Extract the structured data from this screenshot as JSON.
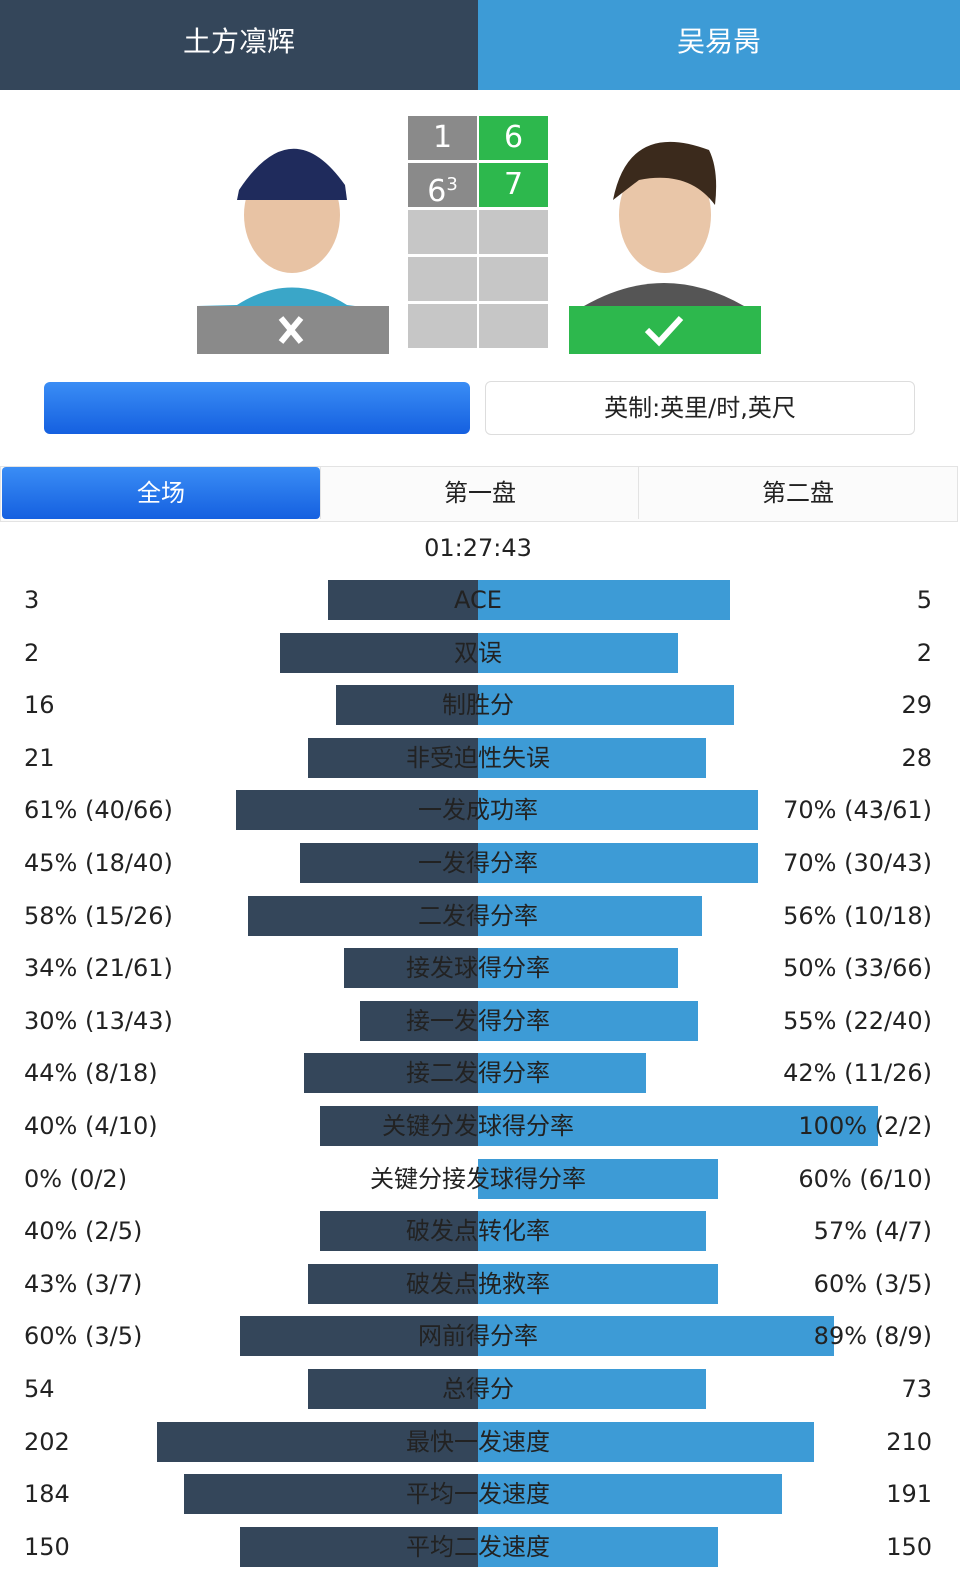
{
  "header": {
    "player_left": "土方凛辉",
    "player_right": "吴易昺"
  },
  "score": {
    "sets": [
      {
        "left": 1,
        "right": 6
      },
      {
        "left": 6,
        "left_tiebreak": 3,
        "right": 7
      }
    ]
  },
  "units_button": "英制:英里/时,英尺",
  "tabs": [
    "全场",
    "第一盘",
    "第二盘"
  ],
  "duration": "01:27:43",
  "stats": [
    {
      "label": "ACE",
      "left": "3",
      "right": "5"
    },
    {
      "label": "双误",
      "left": "2",
      "right": "2"
    },
    {
      "label": "制胜分",
      "left": "16",
      "right": "29"
    },
    {
      "label": "非受迫性失误",
      "left": "21",
      "right": "28"
    },
    {
      "label": "一发成功率",
      "left": "61% (40/66)",
      "right": "70% (43/61)"
    },
    {
      "label": "一发得分率",
      "left": "45% (18/40)",
      "right": "70% (30/43)"
    },
    {
      "label": "二发得分率",
      "left": "58% (15/26)",
      "right": "56% (10/18)"
    },
    {
      "label": "接发球得分率",
      "left": "34% (21/61)",
      "right": "50% (33/66)"
    },
    {
      "label": "接一发得分率",
      "left": "30% (13/43)",
      "right": "55% (22/40)"
    },
    {
      "label": "接二发得分率",
      "left": "44% (8/18)",
      "right": "42% (11/26)"
    },
    {
      "label": "关键分发球得分率",
      "left": "40% (4/10)",
      "right": "100% (2/2)"
    },
    {
      "label": "关键分接发球得分率",
      "left": "0% (0/2)",
      "right": "60% (6/10)"
    },
    {
      "label": "破发点转化率",
      "left": "40% (2/5)",
      "right": "57% (4/7)"
    },
    {
      "label": "破发点挽救率",
      "left": "43% (3/7)",
      "right": "60% (3/5)"
    },
    {
      "label": "网前得分率",
      "left": "60% (3/5)",
      "right": "89% (8/9)"
    },
    {
      "label": "总得分",
      "left": "54",
      "right": "73"
    },
    {
      "label": "最快一发速度",
      "left": "202",
      "right": "210"
    },
    {
      "label": "平均一发速度",
      "left": "184",
      "right": "191"
    },
    {
      "label": "平均二发速度",
      "left": "150",
      "right": "150"
    }
  ]
}
